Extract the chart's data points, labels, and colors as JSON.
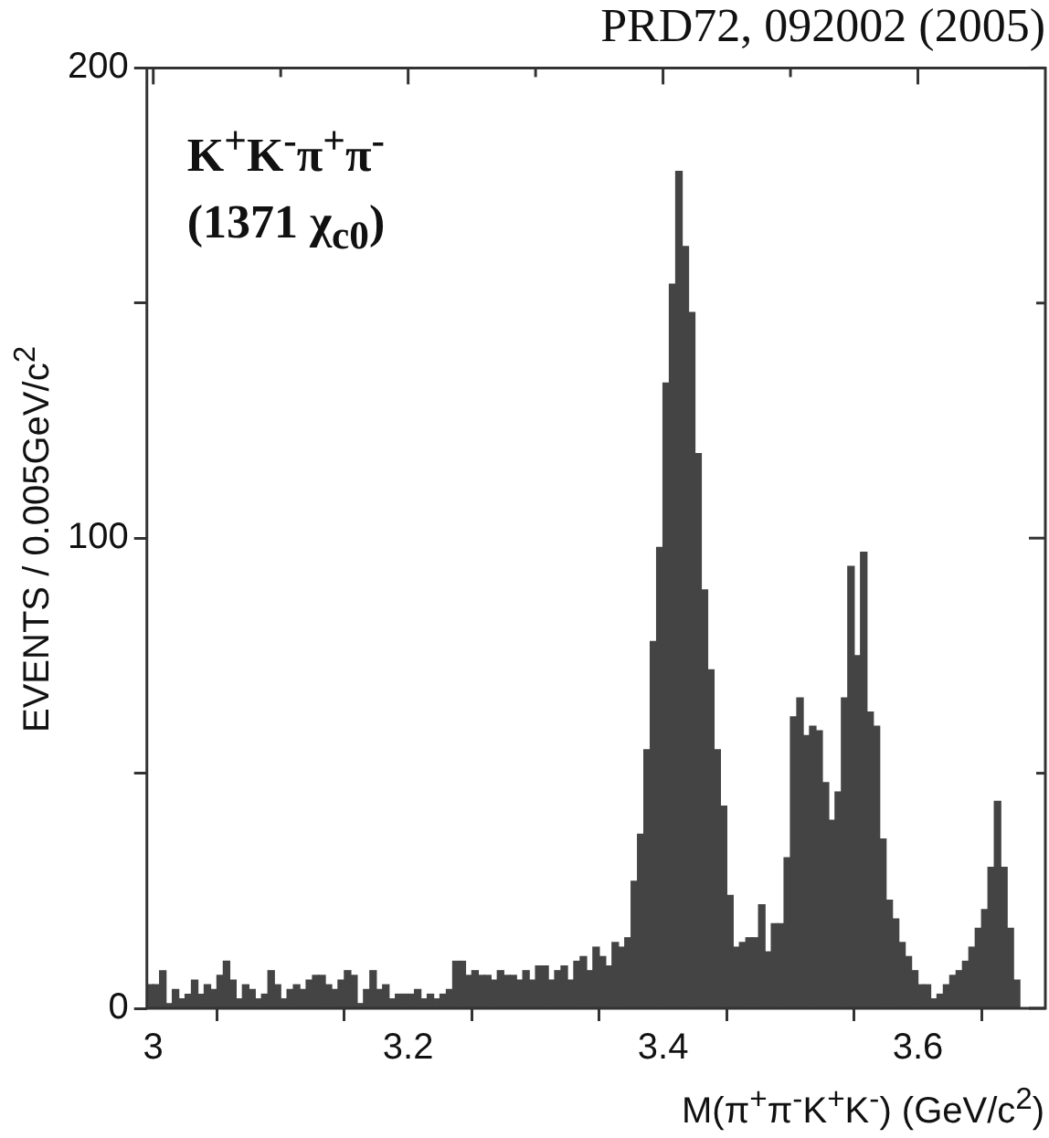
{
  "chart_data": {
    "type": "histogram",
    "title": "PRD72, 092002 (2005)",
    "xlabel": "M(π$^{+}$π$^{-}$K$^{+}$K$^{-}$) (GeV/c$^{2}$)",
    "ylabel": "EVENTS / 0.005GeV/c$^{2}$",
    "annotations": [
      "K$^{+}$K$^{-}$π$^{+}$π$^{-}$",
      "(1371 χ$_{c0}$)"
    ],
    "color": "#444444",
    "bins": [
      2.995,
      3,
      3.005,
      3.01,
      3.015,
      3.02,
      3.025,
      3.03,
      3.035,
      3.04,
      3.045,
      3.05,
      3.055,
      3.06,
      3.065,
      3.07,
      3.075,
      3.08,
      3.085,
      3.09,
      3.095,
      3.1,
      3.105,
      3.11,
      3.115,
      3.12,
      3.125,
      3.13,
      3.135,
      3.14,
      3.145,
      3.15,
      3.155,
      3.16,
      3.165,
      3.17,
      3.175,
      3.18,
      3.185,
      3.19,
      3.195,
      3.2,
      3.205,
      3.21,
      3.215,
      3.22,
      3.225,
      3.23,
      3.235,
      3.24,
      3.245,
      3.25,
      3.255,
      3.26,
      3.265,
      3.27,
      3.275,
      3.28,
      3.285,
      3.29,
      3.295,
      3.3,
      3.305,
      3.31,
      3.315,
      3.32,
      3.325,
      3.33,
      3.335,
      3.34,
      3.345,
      3.35,
      3.355,
      3.36,
      3.365,
      3.37,
      3.375,
      3.38,
      3.385,
      3.39,
      3.395,
      3.4,
      3.405,
      3.41,
      3.415,
      3.42,
      3.425,
      3.43,
      3.435,
      3.44,
      3.445,
      3.45,
      3.455,
      3.46,
      3.465,
      3.47,
      3.475,
      3.48,
      3.485,
      3.49,
      3.495,
      3.5,
      3.505,
      3.51,
      3.515,
      3.52,
      3.525,
      3.53,
      3.535,
      3.54,
      3.545,
      3.55,
      3.555,
      3.56,
      3.565,
      3.57,
      3.575,
      3.58,
      3.585,
      3.59,
      3.595,
      3.6,
      3.605,
      3.61,
      3.615,
      3.62,
      3.625,
      3.63,
      3.635,
      3.64,
      3.645,
      3.65,
      3.655,
      3.66,
      3.665,
      3.67,
      3.675,
      3.68,
      3.685,
      3.69,
      3.695
    ],
    "values": [
      5,
      5,
      8,
      1,
      4,
      2,
      3,
      6,
      3,
      5,
      4,
      7,
      10,
      6,
      2,
      5,
      4,
      2,
      3,
      8,
      5,
      2,
      4,
      5,
      4,
      6,
      7,
      7,
      5,
      4,
      6,
      8,
      7,
      1,
      4,
      8,
      4,
      5,
      2,
      3,
      3,
      3,
      4,
      2,
      3,
      2,
      3,
      4,
      10,
      10,
      7,
      8,
      7,
      7,
      6,
      8,
      7,
      7,
      6,
      8,
      6,
      9,
      9,
      6,
      8,
      9,
      6,
      10,
      11,
      8,
      13,
      11,
      9,
      14,
      13,
      15,
      27,
      37,
      55,
      78,
      98,
      133,
      154,
      178,
      162,
      148,
      118,
      89,
      72,
      55,
      43,
      24,
      13,
      14,
      15,
      15,
      22,
      12,
      18,
      18,
      32,
      62,
      66,
      58,
      60,
      59,
      48,
      40,
      46,
      66,
      94,
      75,
      97,
      63,
      60,
      36,
      23,
      19,
      14,
      11,
      8,
      5,
      5,
      2,
      3,
      5,
      7,
      8,
      10,
      13,
      17,
      21,
      30,
      44,
      30,
      17,
      6,
      0,
      0,
      0
    ],
    "xlim": [
      2.995,
      3.7
    ],
    "xticks": [
      3,
      {
        "value": 3.1,
        "label": null
      },
      3.2,
      {
        "value": 3.3,
        "label": null
      },
      3.4,
      {
        "value": 3.5,
        "label": null
      },
      3.6
    ],
    "ylim": [
      0,
      200
    ],
    "yticks": [
      0,
      {
        "value": 50,
        "label": null
      },
      100,
      {
        "value": 150,
        "label": null
      },
      200
    ]
  }
}
